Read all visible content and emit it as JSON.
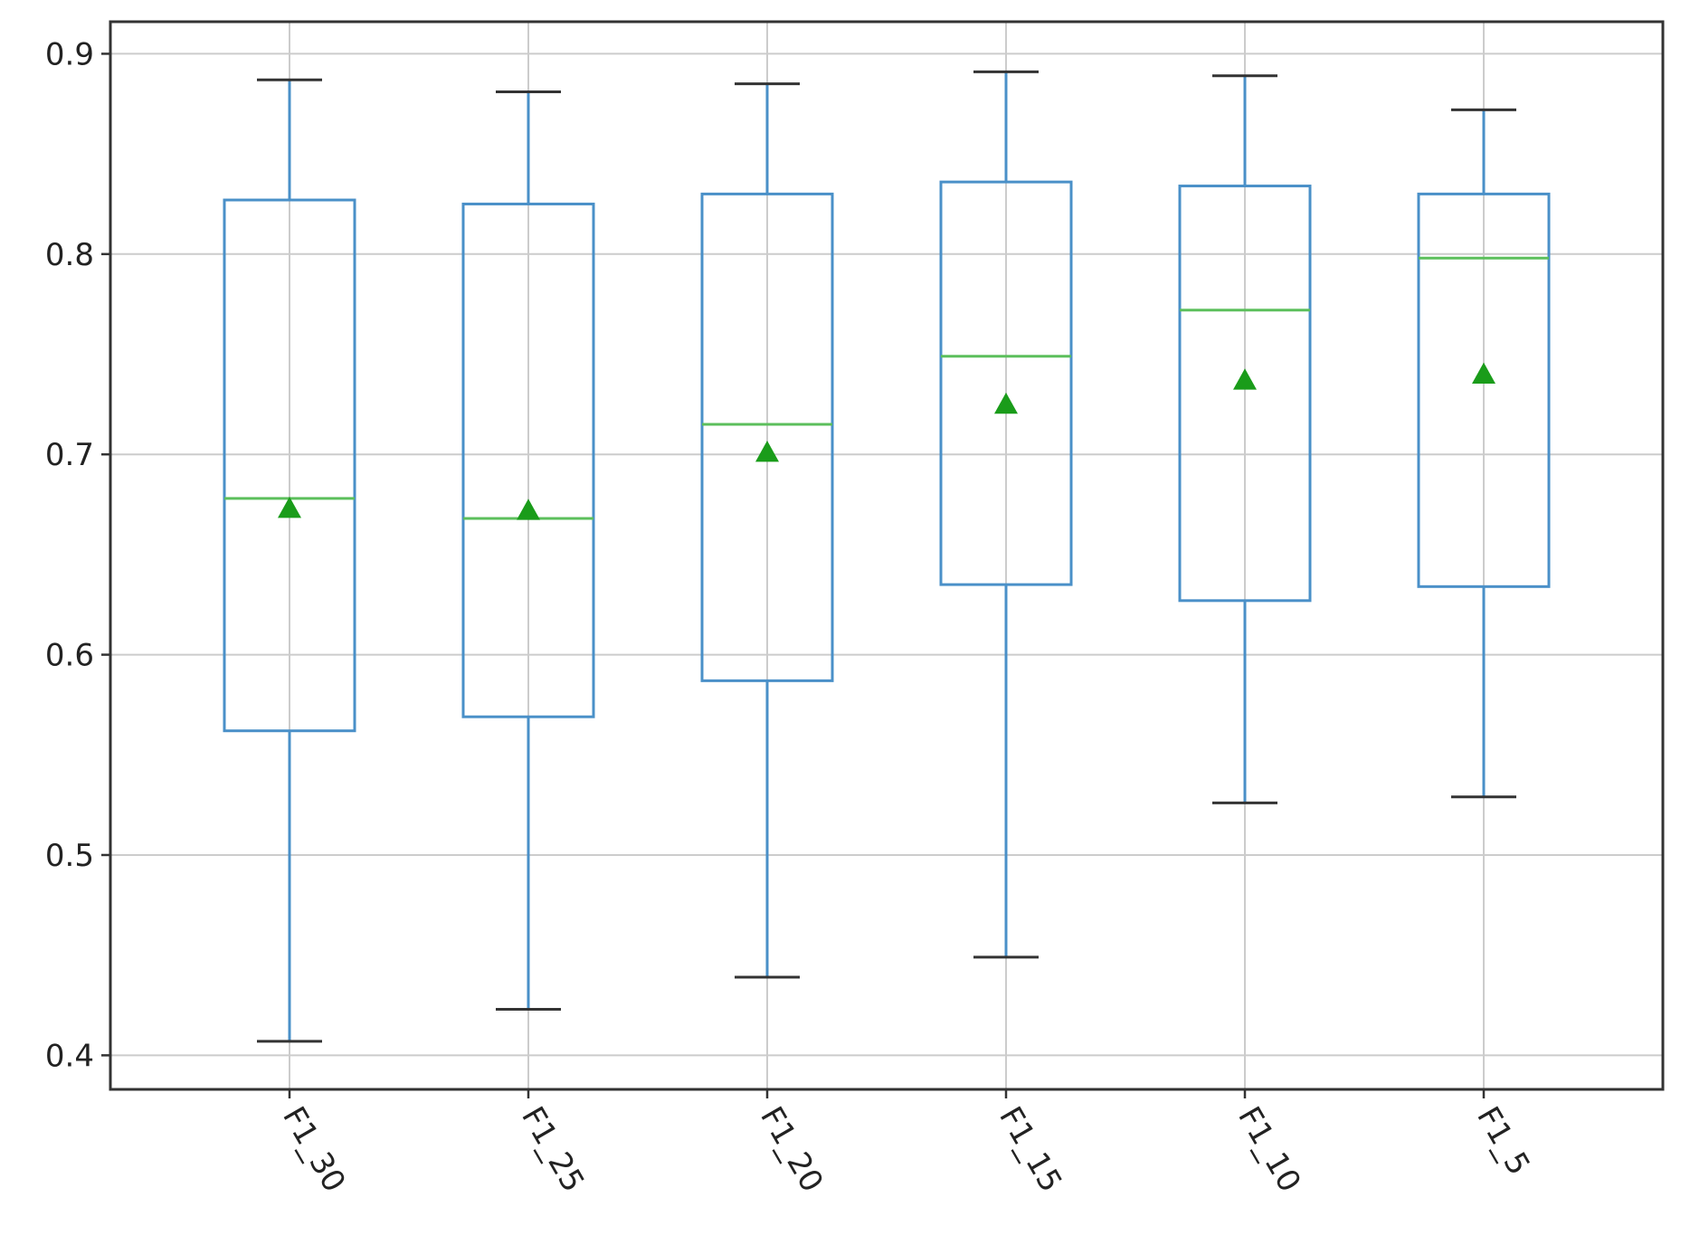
{
  "chart_data": {
    "type": "box",
    "title": "",
    "xlabel": "",
    "ylabel": "",
    "ylim": [
      0.383,
      0.916
    ],
    "yticks": [
      0.4,
      0.5,
      0.6,
      0.7,
      0.8,
      0.9
    ],
    "ytick_labels": [
      "0.4",
      "0.5",
      "0.6",
      "0.7",
      "0.8",
      "0.9"
    ],
    "grid": true,
    "legend": "none",
    "categories": [
      "F1_30",
      "F1_25",
      "F1_20",
      "F1_15",
      "F1_10",
      "F1_5"
    ],
    "boxes": [
      {
        "label": "F1_30",
        "whisker_low": 0.407,
        "q1": 0.562,
        "median": 0.678,
        "mean": 0.673,
        "q3": 0.827,
        "whisker_high": 0.887
      },
      {
        "label": "F1_25",
        "whisker_low": 0.423,
        "q1": 0.569,
        "median": 0.668,
        "mean": 0.672,
        "q3": 0.825,
        "whisker_high": 0.881
      },
      {
        "label": "F1_20",
        "whisker_low": 0.439,
        "q1": 0.587,
        "median": 0.715,
        "mean": 0.701,
        "q3": 0.83,
        "whisker_high": 0.885
      },
      {
        "label": "F1_15",
        "whisker_low": 0.449,
        "q1": 0.635,
        "median": 0.749,
        "mean": 0.725,
        "q3": 0.836,
        "whisker_high": 0.891
      },
      {
        "label": "F1_10",
        "whisker_low": 0.526,
        "q1": 0.627,
        "median": 0.772,
        "mean": 0.737,
        "q3": 0.834,
        "whisker_high": 0.889
      },
      {
        "label": "F1_5",
        "whisker_low": 0.529,
        "q1": 0.634,
        "median": 0.798,
        "mean": 0.74,
        "q3": 0.83,
        "whisker_high": 0.872
      }
    ],
    "colors": {
      "box": "#4a90c8",
      "median": "#5cbf5c",
      "mean_marker": "#1a9c1a",
      "caps": "#333333",
      "grid": "#cccccc",
      "frame": "#333333"
    }
  }
}
